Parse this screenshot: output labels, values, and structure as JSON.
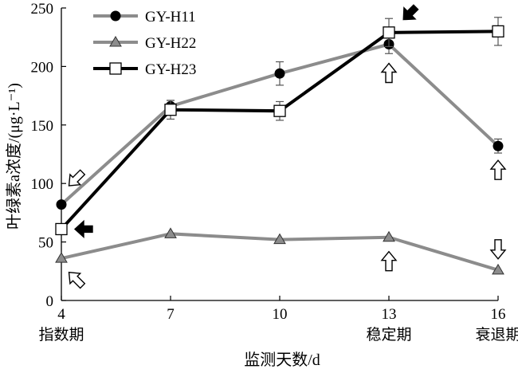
{
  "chart_data": {
    "type": "line",
    "xlabel": "监测天数/d",
    "ylabel": "叶绿素a浓度/(μg·L⁻¹)",
    "x": [
      4,
      7,
      10,
      13,
      16
    ],
    "x_ticks": [
      "4",
      "7",
      "10",
      "13",
      "16"
    ],
    "x_sublabels": [
      {
        "x": 4,
        "label": "指数期"
      },
      {
        "x": 13,
        "label": "稳定期"
      },
      {
        "x": 16,
        "label": "衰退期"
      }
    ],
    "xlim": [
      4,
      16
    ],
    "ylim": [
      0,
      250
    ],
    "y_ticks": [
      "0",
      "50",
      "100",
      "150",
      "200",
      "250"
    ],
    "grid": false,
    "legend_position": "top-left",
    "series": [
      {
        "name": "GY-H11",
        "marker": "filled-circle",
        "line_color": "#8c8c8c",
        "marker_color": "#000000",
        "values": [
          82,
          166,
          194,
          219,
          132
        ],
        "errors": [
          0,
          5,
          10,
          8,
          6
        ]
      },
      {
        "name": "GY-H22",
        "marker": "triangle",
        "line_color": "#8c8c8c",
        "marker_color": "#8c8c8c",
        "values": [
          36,
          57,
          52,
          54,
          26
        ],
        "errors": [
          0,
          0,
          0,
          0,
          0
        ]
      },
      {
        "name": "GY-H23",
        "marker": "open-square",
        "line_color": "#000000",
        "marker_color": "#ffffff",
        "values": [
          61,
          163,
          162,
          229,
          230
        ],
        "errors": [
          0,
          8,
          8,
          12,
          12
        ]
      }
    ],
    "annotations": [
      {
        "type": "hollow-arrow",
        "direction": "down-left",
        "x": 4,
        "y": 82
      },
      {
        "type": "solid-arrow",
        "direction": "left",
        "x": 4,
        "y": 61
      },
      {
        "type": "hollow-arrow",
        "direction": "up-left",
        "x": 4,
        "y": 36
      },
      {
        "type": "solid-arrow",
        "direction": "down-left",
        "x": 13,
        "y": 229
      },
      {
        "type": "hollow-arrow",
        "direction": "up",
        "x": 13,
        "y": 219
      },
      {
        "type": "hollow-arrow",
        "direction": "up",
        "x": 13,
        "y": 54
      },
      {
        "type": "hollow-arrow",
        "direction": "up",
        "x": 16,
        "y": 132
      },
      {
        "type": "hollow-arrow",
        "direction": "down",
        "x": 16,
        "y": 26
      }
    ]
  }
}
